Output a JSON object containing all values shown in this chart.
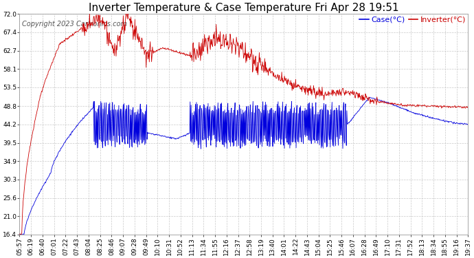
{
  "title": "Inverter Temperature & Case Temperature Fri Apr 28 19:51",
  "copyright": "Copyright 2023 Cartronics.com",
  "yticks": [
    16.4,
    21.0,
    25.6,
    30.3,
    34.9,
    39.5,
    44.2,
    48.8,
    53.5,
    58.1,
    62.7,
    67.4,
    72.0
  ],
  "ymin": 16.4,
  "ymax": 72.0,
  "legend_case_label": "Case(°C)",
  "legend_inverter_label": "Inverter(°C)",
  "case_color": "#0000dd",
  "inverter_color": "#cc0000",
  "bg_color": "#ffffff",
  "grid_color": "#bbbbbb",
  "xtick_labels": [
    "05:57",
    "06:19",
    "06:40",
    "07:01",
    "07:22",
    "07:43",
    "08:04",
    "08:25",
    "08:46",
    "09:07",
    "09:28",
    "09:49",
    "10:10",
    "10:31",
    "10:52",
    "11:13",
    "11:34",
    "11:55",
    "12:16",
    "12:37",
    "12:58",
    "13:19",
    "13:40",
    "14:01",
    "14:22",
    "14:43",
    "15:04",
    "15:25",
    "15:46",
    "16:07",
    "16:28",
    "16:49",
    "17:10",
    "17:31",
    "17:52",
    "18:13",
    "18:34",
    "18:55",
    "19:16",
    "19:37"
  ],
  "title_fontsize": 11,
  "copyright_fontsize": 7,
  "legend_fontsize": 8,
  "tick_fontsize": 6.5,
  "figsize": [
    6.9,
    3.75
  ],
  "dpi": 100
}
